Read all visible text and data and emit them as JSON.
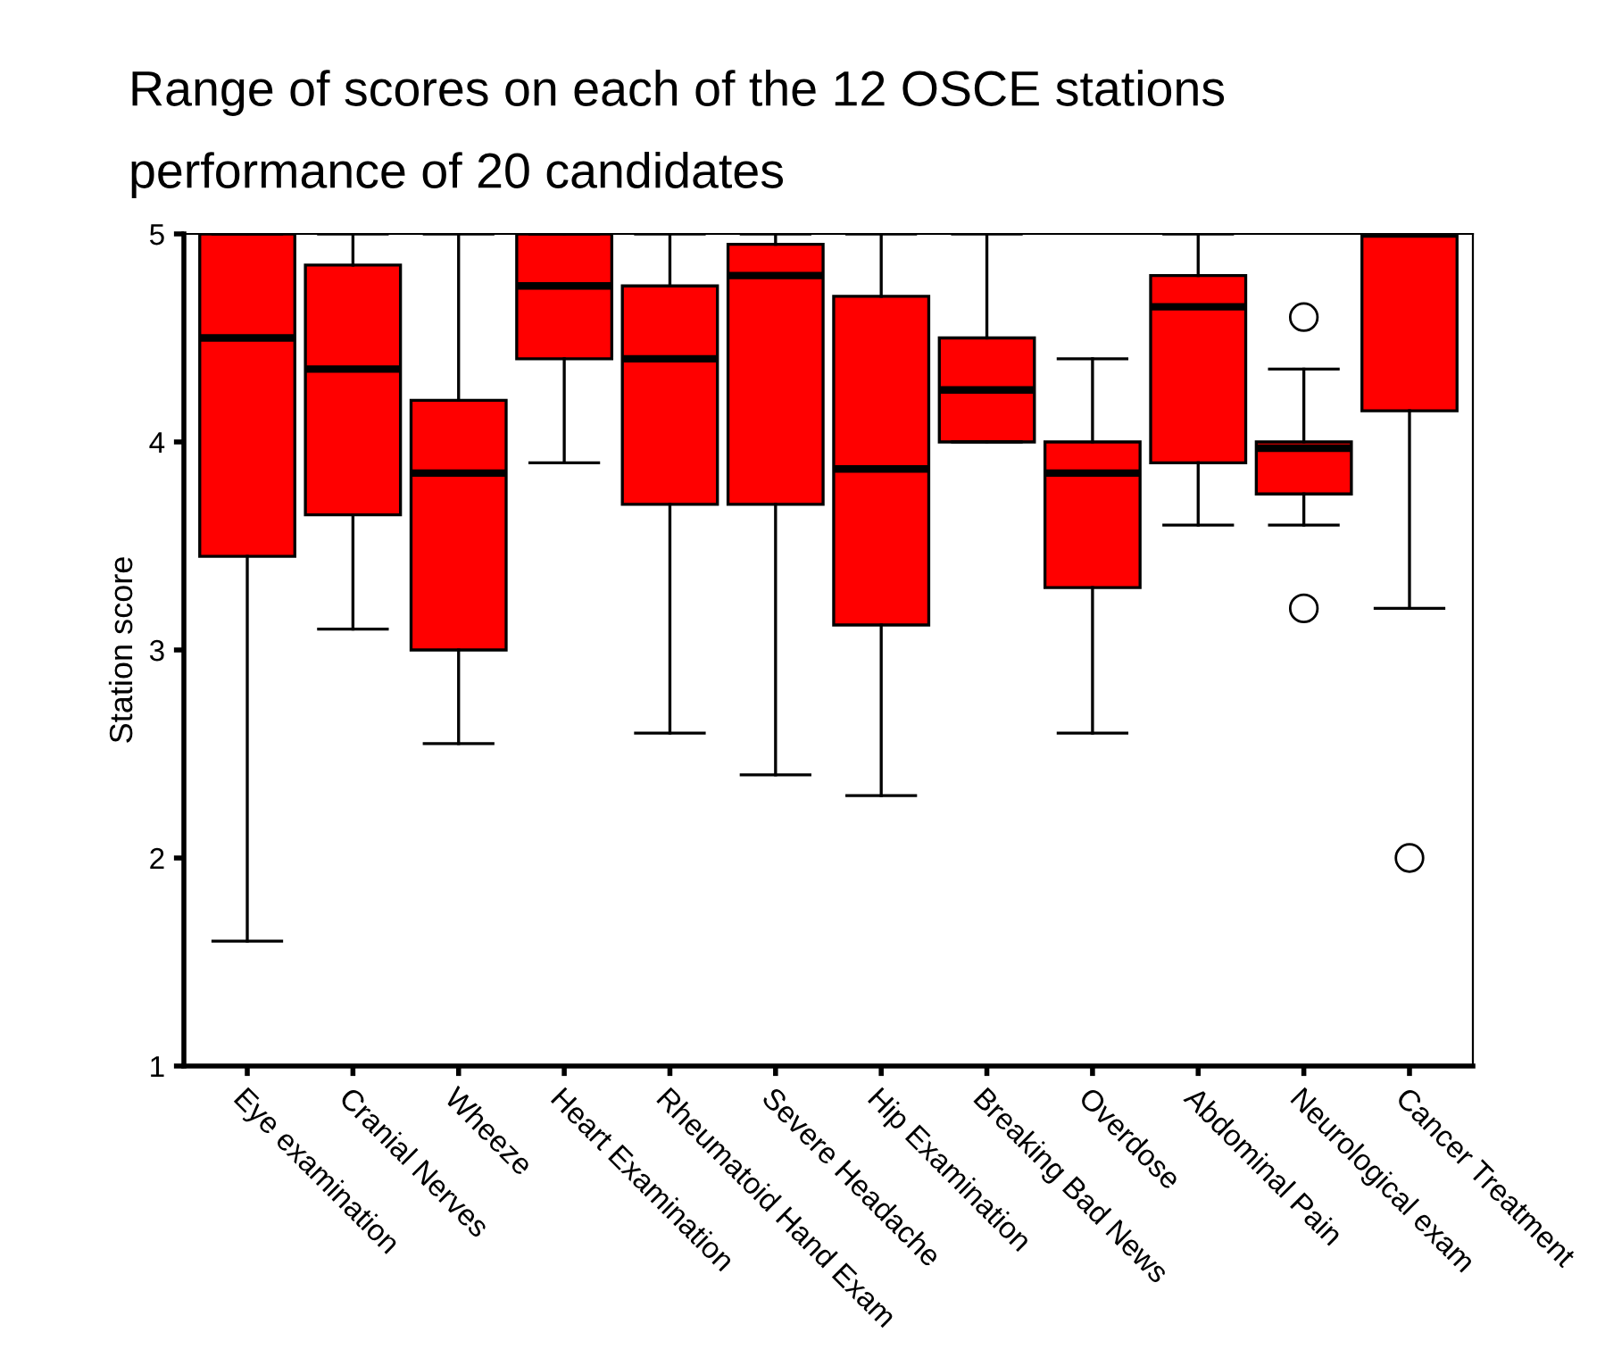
{
  "chart_data": {
    "type": "box",
    "title": "Range of scores on each of the 12 OSCE stations",
    "subtitle": "performance of 20 candidates",
    "ylabel": "Station score",
    "categories": [
      "Eye examination",
      "Cranial Nerves",
      "Wheeze",
      "Heart Examination",
      "Rheumatoid Hand Exam",
      "Severe Headache",
      "Hip Examination",
      "Breaking Bad News",
      "Overdose",
      "Abdominal Pain",
      "Neurological exam",
      "Cancer Treatment"
    ],
    "series": [
      {
        "color": "#ff0000",
        "boxes": [
          {
            "low": 1.6,
            "q1": 3.45,
            "median": 4.5,
            "q3": 5,
            "high": 5
          },
          {
            "low": 3.1,
            "q1": 3.65,
            "median": 4.35,
            "q3": 4.85,
            "high": 5
          },
          {
            "low": 2.55,
            "q1": 3.0,
            "median": 3.85,
            "q3": 4.2,
            "high": 5
          },
          {
            "low": 3.9,
            "q1": 4.4,
            "median": 4.75,
            "q3": 5,
            "high": 5
          },
          {
            "low": 2.6,
            "q1": 3.7,
            "median": 4.4,
            "q3": 4.75,
            "high": 5
          },
          {
            "low": 2.4,
            "q1": 3.7,
            "median": 4.8,
            "q3": 4.95,
            "high": 5
          },
          {
            "low": 2.3,
            "q1": 3.12,
            "median": 3.87,
            "q3": 4.7,
            "high": 5
          },
          {
            "low": 4.0,
            "q1": 4.0,
            "median": 4.25,
            "q3": 4.5,
            "high": 5
          },
          {
            "low": 2.6,
            "q1": 3.3,
            "median": 3.85,
            "q3": 4.0,
            "high": 4.4
          },
          {
            "low": 3.6,
            "q1": 3.9,
            "median": 4.65,
            "q3": 4.8,
            "high": 5
          },
          {
            "low": 3.6,
            "q1": 3.75,
            "median": 3.97,
            "q3": 4.0,
            "high": 4.35,
            "outliers": [
              4.6,
              3.2
            ]
          },
          {
            "low": 3.2,
            "q1": 4.15,
            "median": 5,
            "q3": 5,
            "high": 5,
            "outliers": [
              2.0
            ]
          }
        ]
      }
    ],
    "ylim": [
      1,
      5
    ],
    "yticks": [
      1,
      2,
      3,
      4,
      5
    ],
    "grid": false,
    "legend": false
  }
}
